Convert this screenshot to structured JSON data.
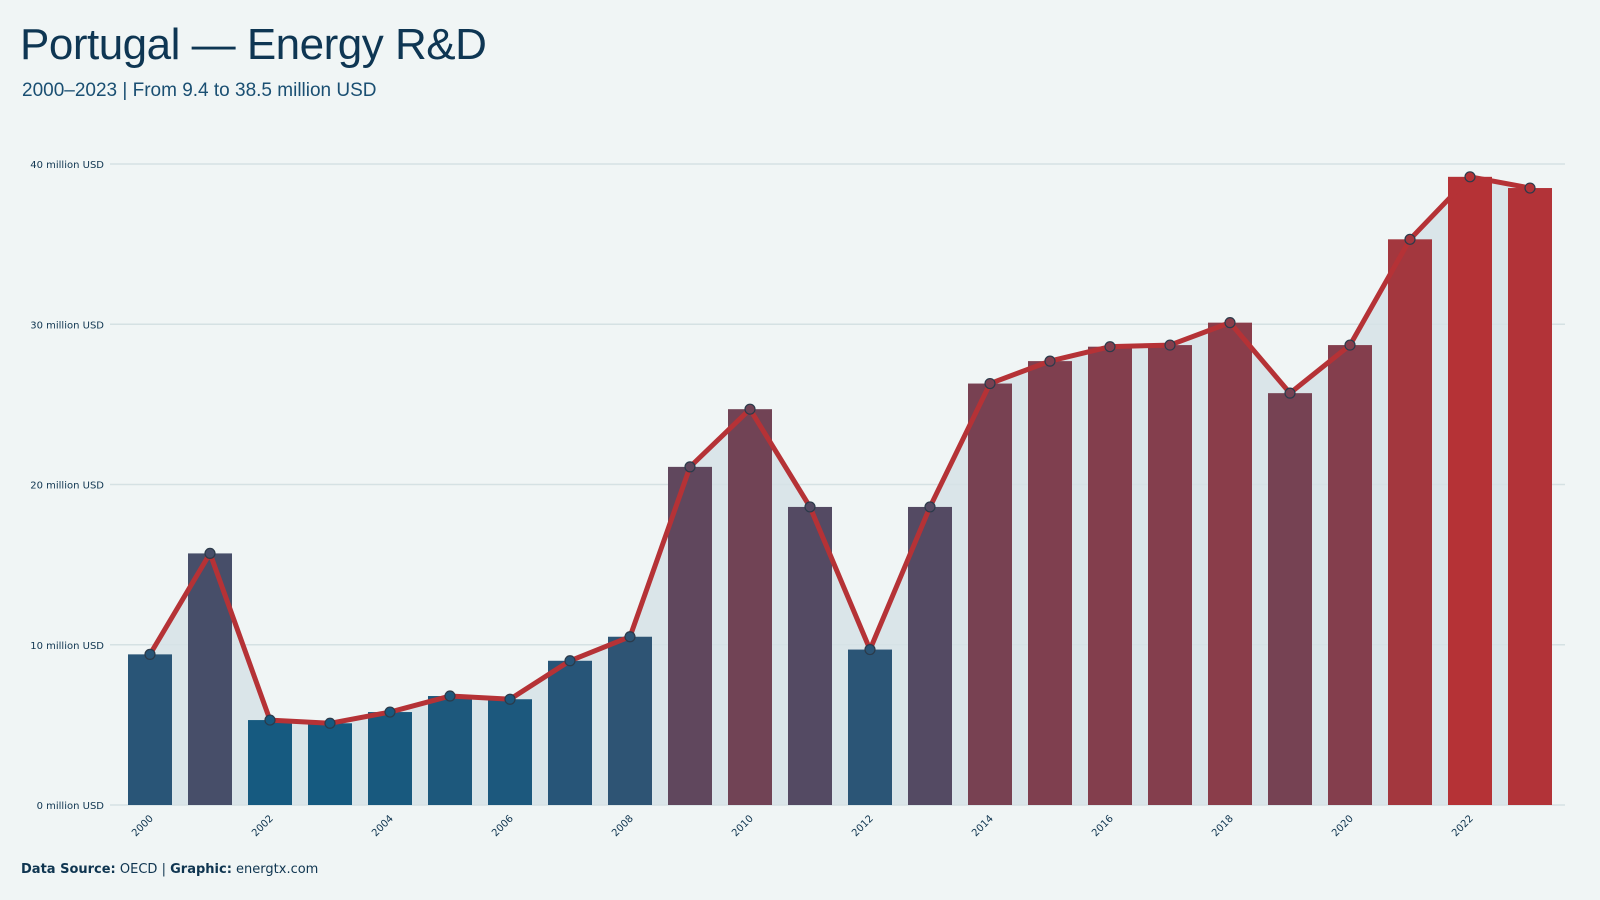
{
  "header": {
    "title": "Portugal — Energy R&D",
    "subtitle": "2000–2023 | From 9.4 to 38.5 million USD"
  },
  "footer": {
    "source_label": "Data Source:",
    "source_value": "OECD",
    "separator": "|",
    "graphic_label": "Graphic:",
    "graphic_value": "energtx.com"
  },
  "colors": {
    "background": "#f0f5f5",
    "low": "#155a80",
    "high": "#b53236",
    "line": "#b53236",
    "area": "#d6e2e6",
    "grid": "#d5e1e3",
    "text": "#0f3550"
  },
  "chart_data": {
    "type": "bar",
    "x": [
      2000,
      2001,
      2002,
      2003,
      2004,
      2005,
      2006,
      2007,
      2008,
      2009,
      2010,
      2011,
      2012,
      2013,
      2014,
      2015,
      2016,
      2017,
      2018,
      2019,
      2020,
      2021,
      2022,
      2023
    ],
    "values": [
      9.4,
      15.7,
      5.3,
      5.1,
      5.8,
      6.8,
      6.6,
      9.0,
      10.5,
      21.1,
      24.7,
      18.6,
      9.7,
      18.6,
      26.3,
      27.7,
      28.6,
      28.7,
      30.1,
      25.7,
      28.7,
      35.3,
      39.2,
      38.5
    ],
    "overlay": "line",
    "ylim": [
      0,
      40
    ],
    "yticks": [
      0,
      10,
      20,
      30,
      40
    ],
    "ytick_labels": [
      "0 million USD",
      "10 million USD",
      "20 million USD",
      "30 million USD",
      "40 million USD"
    ],
    "xtick_labels": [
      "2000",
      "2002",
      "2004",
      "2006",
      "2008",
      "2010",
      "2012",
      "2014",
      "2016",
      "2018",
      "2020",
      "2022"
    ],
    "title": "Portugal — Energy R&D",
    "subtitle": "2000–2023 | From 9.4 to 38.5 million USD",
    "xlabel": "",
    "ylabel": "",
    "grid": true,
    "legend": "none",
    "unit": "million USD"
  }
}
